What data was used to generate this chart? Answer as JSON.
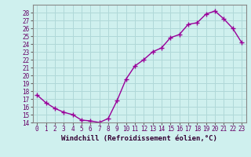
{
  "x": [
    0,
    1,
    2,
    3,
    4,
    5,
    6,
    7,
    8,
    9,
    10,
    11,
    12,
    13,
    14,
    15,
    16,
    17,
    18,
    19,
    20,
    21,
    22,
    23
  ],
  "y": [
    17.5,
    16.5,
    15.8,
    15.3,
    15.0,
    14.3,
    14.2,
    14.0,
    14.5,
    16.8,
    19.5,
    21.2,
    22.0,
    23.0,
    23.5,
    24.8,
    25.2,
    26.5,
    26.7,
    27.8,
    28.2,
    27.2,
    26.0,
    24.2
  ],
  "line_color": "#990099",
  "marker": "+",
  "markersize": 4,
  "markeredgewidth": 1.0,
  "linewidth": 1.0,
  "bg_color": "#cff0ee",
  "grid_color": "#b0d8d8",
  "xlabel": "Windchill (Refroidissement éolien,°C)",
  "xlabel_fontsize": 6.5,
  "tick_fontsize": 5.5,
  "ylim": [
    14,
    29
  ],
  "xlim": [
    -0.5,
    23.5
  ],
  "yticks": [
    14,
    15,
    16,
    17,
    18,
    19,
    20,
    21,
    22,
    23,
    24,
    25,
    26,
    27,
    28
  ],
  "xticks": [
    0,
    1,
    2,
    3,
    4,
    5,
    6,
    7,
    8,
    9,
    10,
    11,
    12,
    13,
    14,
    15,
    16,
    17,
    18,
    19,
    20,
    21,
    22,
    23
  ]
}
